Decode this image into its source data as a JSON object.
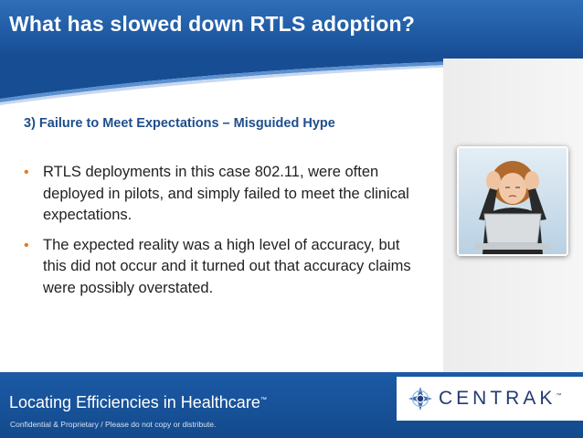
{
  "slide": {
    "title": "What has slowed down RTLS adoption?",
    "subtitle": "3) Failure to Meet Expectations – Misguided Hype",
    "bullets": [
      {
        "marker": "•",
        "text": "RTLS deployments in this case 802.11, were often deployed in pilots, and simply failed to meet the clinical expectations."
      },
      {
        "marker": "•",
        "text": "The expected reality was a high level of accuracy, but this did not occur and it turned out that accuracy claims were possibly overstated."
      }
    ],
    "image_icon": "stressed-woman-laptop-photo"
  },
  "footer": {
    "tagline": "Locating Efficiencies in Healthcare",
    "tagline_tm": "™",
    "notice": "Confidential & Proprietary / Please do not copy or distribute."
  },
  "logo": {
    "text": "CENTRAK",
    "tm": "™",
    "icon": "centrak-compass-icon"
  },
  "colors": {
    "header_blue": "#1f5aa3",
    "subtitle_blue": "#1f4e8c",
    "bullet_orange": "#e07b24",
    "logo_navy": "#243a72"
  }
}
